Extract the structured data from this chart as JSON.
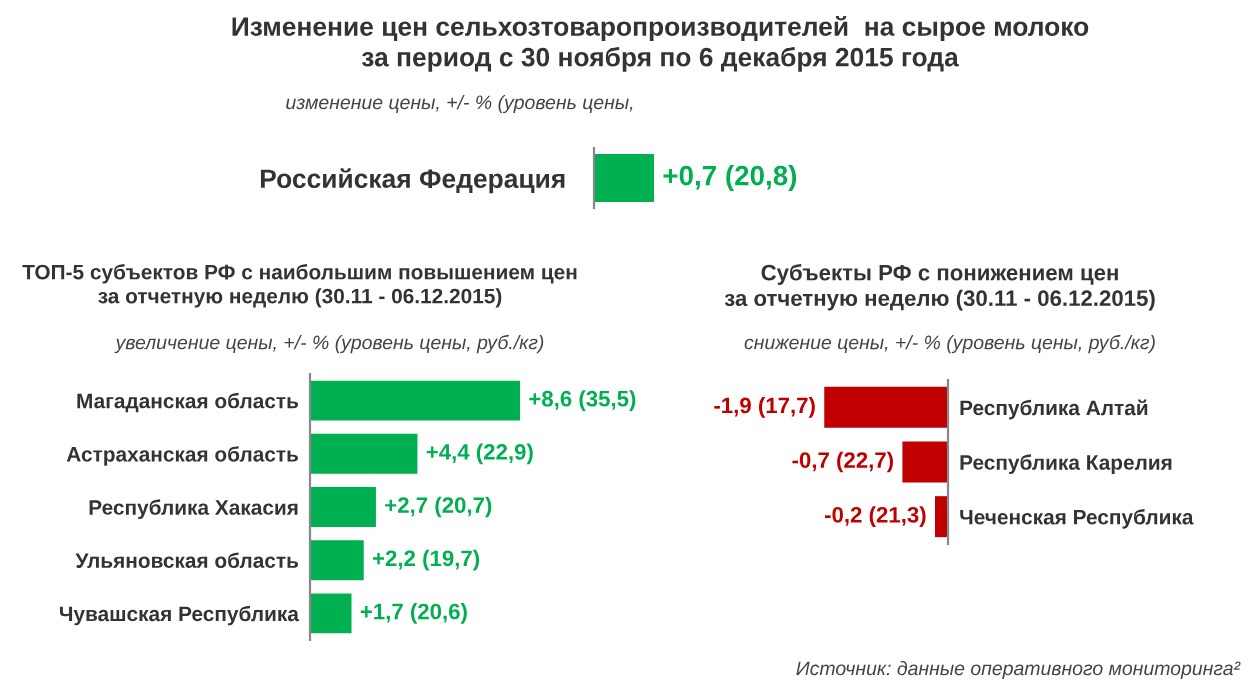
{
  "chart_data": [
    {
      "type": "bar",
      "orientation": "horizontal",
      "title": "Изменение цен сельхозтоваропроизводителей  на сырое молоко\nза период с 30 ноября по 6 декабря 2015 года",
      "subtitle": "изменение цены, +/- % (уровень цены,",
      "categories": [
        "Российская Федерация"
      ],
      "values": [
        0.7
      ],
      "color": "#00b050",
      "value_labels": [
        "+0,7 (20,8)"
      ],
      "tick_labels": "y",
      "grid": false,
      "legend": false
    },
    {
      "type": "bar",
      "orientation": "horizontal",
      "title": "ТОП-5 субъектов РФ с наибольшим повышением цен\nза отчетную неделю (30.11 - 06.12.2015)",
      "subtitle": "увеличение цены, +/- % (уровень цены, руб./кг)",
      "categories": [
        "Магаданская область",
        "Астраханская область",
        "Республика Хакасия",
        "Ульяновская область",
        "Чувашская Республика"
      ],
      "values": [
        8.6,
        4.4,
        2.7,
        2.2,
        1.7
      ],
      "color": "#00b050",
      "value_labels": [
        "+8,6 (35,5)",
        "+4,4 (22,9)",
        "+2,7 (20,7)",
        "+2,2 (19,7)",
        "+1,7 (20,6)"
      ],
      "tick_labels": "y",
      "grid": false,
      "legend": false
    },
    {
      "type": "bar",
      "orientation": "horizontal",
      "title": "Субъекты РФ с понижением цен\nза отчетную неделю (30.11 - 06.12.2015)",
      "subtitle": "снижение цены, +/- % (уровень цены, руб./кг)",
      "categories": [
        "Республика Алтай",
        "Республика Карелия",
        "Чеченская Республика"
      ],
      "values": [
        -1.9,
        -0.7,
        -0.2
      ],
      "color": "#c00000",
      "value_labels": [
        "-1,9 (17,7)",
        "-0,7 (22,7)",
        "-0,2 (21,3)"
      ],
      "annotations": [
        "Источник: данные оперативного мониторинга²"
      ],
      "tick_labels": "y",
      "grid": false,
      "legend": false
    }
  ]
}
